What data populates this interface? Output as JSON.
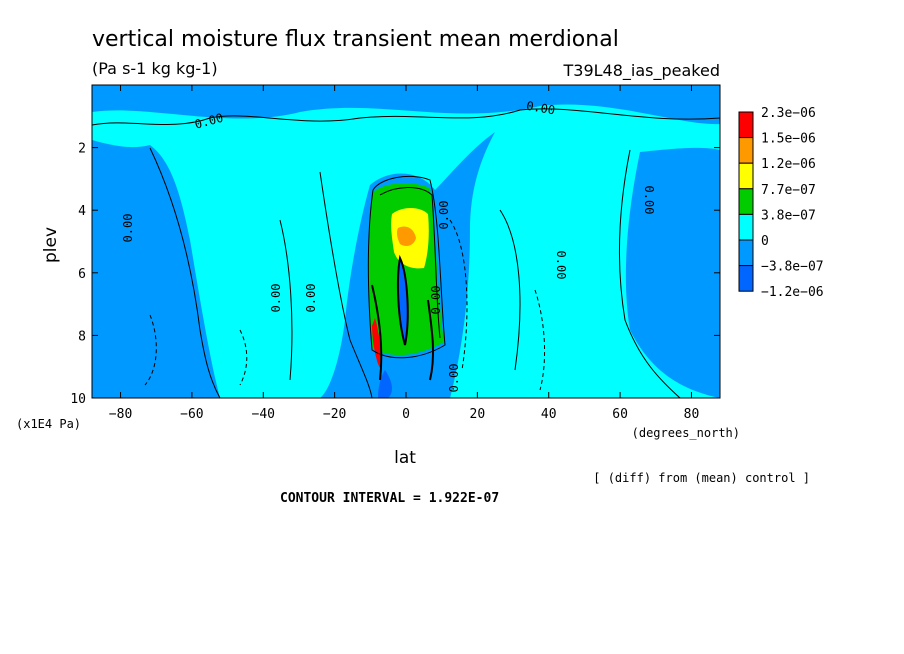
{
  "chart_data": {
    "type": "contour",
    "title": "vertical moisture flux transient mean merdional",
    "subtitle": "(Pa s-1 kg kg-1)",
    "run_label": "T39L48_ias_peaked",
    "xlabel": "lat",
    "x_units": "(degrees_north)",
    "ylabel": "plev",
    "y_units": "(x1E4 Pa)",
    "xlim": [
      -88,
      88
    ],
    "ylim": [
      10,
      0
    ],
    "x_ticks": [
      -80,
      -60,
      -40,
      -20,
      0,
      20,
      40,
      60,
      80
    ],
    "y_ticks": [
      2,
      4,
      6,
      8,
      10
    ],
    "contour_interval_text": "CONTOUR INTERVAL = 1.922E-07",
    "footnote": "[ (diff) from (mean) control ]",
    "contour_labels": [
      "0.00",
      "0.00",
      "0.00",
      "0.00",
      "0.00",
      "0.00",
      "0.00",
      "0.00",
      "0.00",
      "0.00"
    ],
    "colorbar": {
      "labels": [
        "2.3e-06",
        "1.5e-06",
        "1.2e-06",
        "7.7e-07",
        "3.8e-07",
        "0",
        "-3.8e-07",
        "-1.2e-06"
      ],
      "colors": [
        "#ff0000",
        "#ff9900",
        "#ffff00",
        "#00cc00",
        "#00ffff",
        "#0099ff",
        "#0066ff"
      ]
    },
    "regions": [
      {
        "level": "background",
        "color": "#0099ff"
      },
      {
        "level": "0 to 3.8e-07",
        "color": "#00ffff"
      },
      {
        "level": "3.8e-07 to 7.7e-07",
        "color": "#00cc00"
      },
      {
        "level": "7.7e-07 to 1.2e-06",
        "color": "#ffff00"
      },
      {
        "level": "1.2e-06 to 1.5e-06",
        "color": "#ff9900"
      },
      {
        "level": "1.5e-06 to 2.3e-06",
        "color": "#ff0000"
      },
      {
        "level": "-1.2e-06 to -3.8e-07",
        "color": "#0066ff"
      }
    ]
  }
}
